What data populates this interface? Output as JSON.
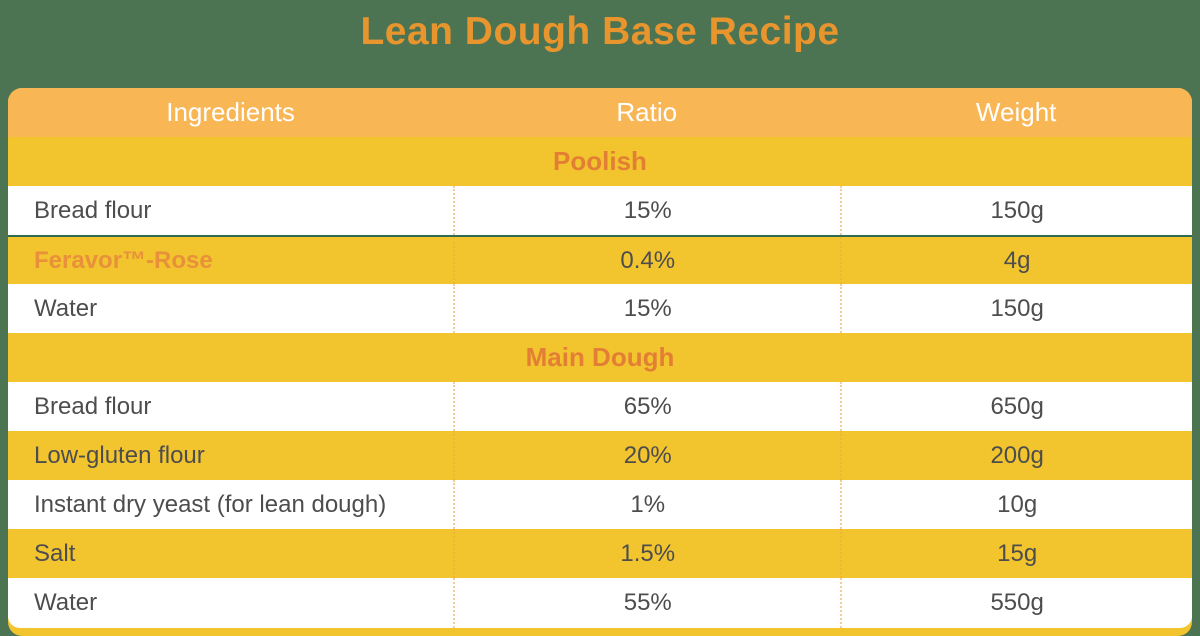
{
  "colors": {
    "bg-green": "#4C7452",
    "orange-title": "#E8952E",
    "header-bg": "#F9B655",
    "yellow": "#F2C42E",
    "orange-section": "#E27F35",
    "orange-highlight": "#E8913A",
    "text-dark": "#4D4D4D",
    "divider-green": "#2E6B52",
    "dot-color": "rgba(236,170,80,0.6)"
  },
  "title": {
    "text": "Lean Dough Base Recipe"
  },
  "table": {
    "columns": [
      "Ingredients",
      "Ratio",
      "Weight"
    ],
    "sections": [
      {
        "label": "Poolish",
        "rows": [
          {
            "ingredient": "Bread flour",
            "ratio": "15%",
            "weight": "150g",
            "style": "white"
          },
          {
            "ingredient": "Feravor™-Rose",
            "ratio": "0.4%",
            "weight": "4g",
            "style": "yellow",
            "highlight": true,
            "divider_top": true
          },
          {
            "ingredient": "Water",
            "ratio": "15%",
            "weight": "150g",
            "style": "white"
          }
        ]
      },
      {
        "label": "Main Dough",
        "rows": [
          {
            "ingredient": "Bread flour",
            "ratio": "65%",
            "weight": "650g",
            "style": "white"
          },
          {
            "ingredient": "Low-gluten flour",
            "ratio": "20%",
            "weight": "200g",
            "style": "yellow"
          },
          {
            "ingredient": "Instant dry yeast (for lean dough)",
            "ratio": "1%",
            "weight": "10g",
            "style": "white"
          },
          {
            "ingredient": "Salt",
            "ratio": "1.5%",
            "weight": "15g",
            "style": "yellow"
          },
          {
            "ingredient": "Water",
            "ratio": "55%",
            "weight": "550g",
            "style": "white",
            "last": true
          }
        ]
      }
    ]
  }
}
